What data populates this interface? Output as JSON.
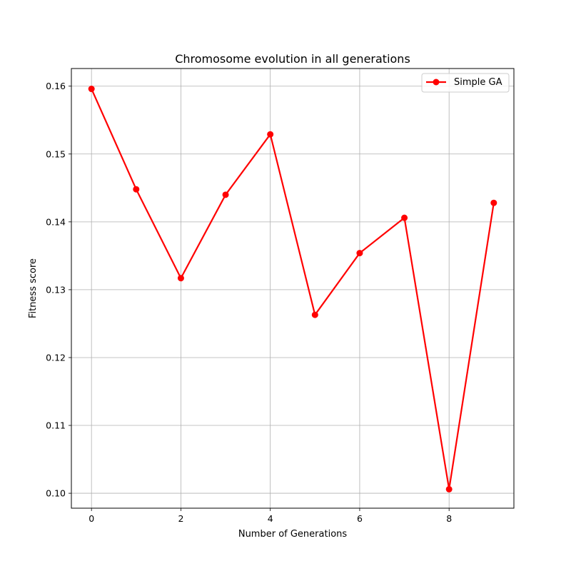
{
  "chart_data": {
    "type": "line",
    "title": "Chromosome evolution in all generations",
    "xlabel": "Number of Generations",
    "ylabel": "Fitness score",
    "xlim": [
      -0.45,
      9.45
    ],
    "ylim": [
      0.0978,
      0.1626
    ],
    "xticks": [
      0,
      2,
      4,
      6,
      8
    ],
    "yticks": [
      0.1,
      0.11,
      0.12,
      0.13,
      0.14,
      0.15,
      0.16
    ],
    "ytick_labels": [
      "0.10",
      "0.11",
      "0.12",
      "0.13",
      "0.14",
      "0.15",
      "0.16"
    ],
    "grid": true,
    "legend": "top-right",
    "series": [
      {
        "name": "Simple GA",
        "color": "#ff0000",
        "marker": "circle",
        "x": [
          0,
          1,
          2,
          3,
          4,
          5,
          6,
          7,
          8,
          9
        ],
        "y": [
          0.1596,
          0.1448,
          0.1317,
          0.144,
          0.1529,
          0.1263,
          0.1354,
          0.1406,
          0.1006,
          0.1428
        ]
      }
    ]
  }
}
